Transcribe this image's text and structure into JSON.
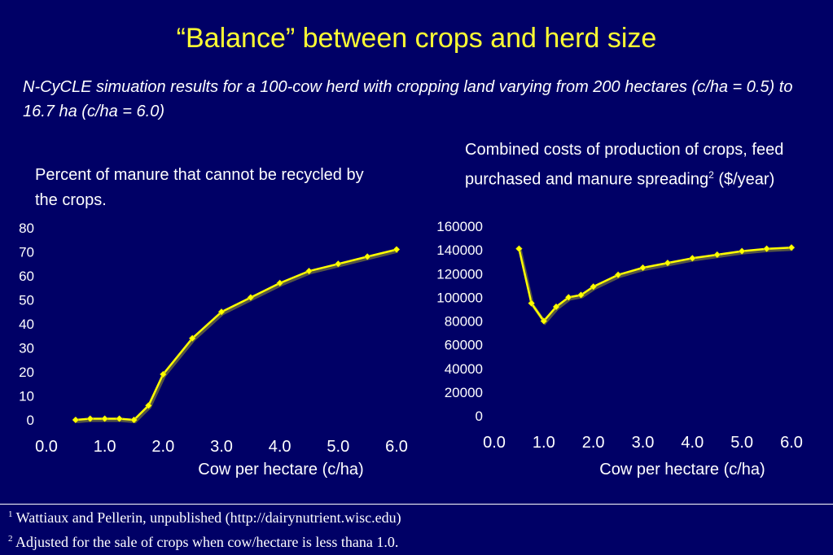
{
  "slide": {
    "title": "“Balance” between crops and herd size",
    "subtitle": "N-CyCLE simuation results for a 100-cow herd with cropping land varying from 200 hectares (c/ha = 0.5) to 16.7 ha (c/ha = 6.0)",
    "left_label": "Percent of manure that cannot be recycled by the crops.",
    "right_label_main": "Combined costs of production of crops, feed purchased and manure spreading",
    "right_label_sup": "2",
    "right_label_tail": "  ($/year)",
    "footnotes": [
      {
        "marker": "1",
        "text": " Wattiaux and Pellerin, unpublished (http://dairynutrient.wisc.edu)"
      },
      {
        "marker": "2",
        "text": " Adjusted for the sale of crops when cow/hectare is less thana 1.0."
      }
    ]
  },
  "colors": {
    "background": "#000066",
    "title": "#ffff33",
    "line": "#ffff00"
  },
  "chart_data": [
    {
      "type": "line",
      "xlabel": "Cow per hectare (c/ha)",
      "ylabel": "",
      "xlim": [
        0.0,
        6.0
      ],
      "ylim": [
        0,
        80
      ],
      "xticks": [
        "0.0",
        "1.0",
        "2.0",
        "3.0",
        "4.0",
        "5.0",
        "6.0"
      ],
      "yticks": [
        "0",
        "10",
        "20",
        "30",
        "40",
        "50",
        "60",
        "70",
        "80"
      ],
      "grid": false,
      "series": [
        {
          "x": [
            0.5,
            0.75,
            1.0,
            1.25,
            1.5,
            1.75,
            2.0,
            2.5,
            3.0,
            3.5,
            4.0,
            4.5,
            5.0,
            5.5,
            6.0
          ],
          "y": [
            0,
            0.5,
            0.5,
            0.5,
            0,
            6,
            19,
            34,
            45,
            51,
            57,
            62,
            65,
            68,
            71
          ]
        }
      ]
    },
    {
      "type": "line",
      "xlabel": "Cow per hectare (c/ha)",
      "ylabel": "",
      "xlim": [
        0.0,
        6.0
      ],
      "ylim": [
        0,
        160000
      ],
      "xticks": [
        "0.0",
        "1.0",
        "2.0",
        "3.0",
        "4.0",
        "5.0",
        "6.0"
      ],
      "yticks": [
        "0",
        "20000",
        "40000",
        "60000",
        "80000",
        "100000",
        "120000",
        "140000",
        "160000"
      ],
      "grid": false,
      "series": [
        {
          "x": [
            0.5,
            0.75,
            1.0,
            1.25,
            1.5,
            1.75,
            2.0,
            2.5,
            3.0,
            3.5,
            4.0,
            4.5,
            5.0,
            5.5,
            6.0
          ],
          "y": [
            141000,
            95000,
            80000,
            92000,
            100000,
            102000,
            109000,
            119000,
            125000,
            129000,
            133000,
            136000,
            139000,
            141000,
            142000
          ]
        }
      ]
    }
  ]
}
